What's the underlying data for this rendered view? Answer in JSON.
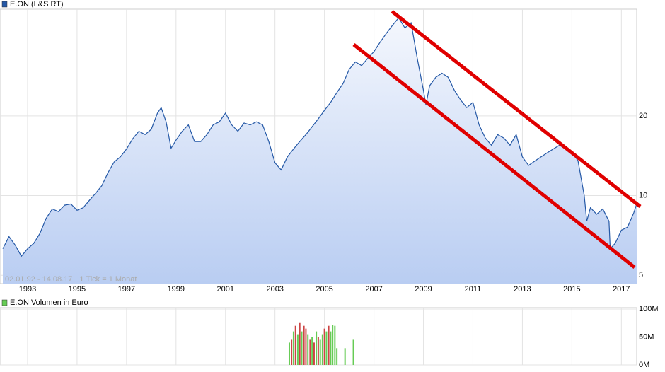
{
  "chart_data": [
    {
      "type": "line",
      "title": "E.ON (L&S RT)",
      "annotations": [
        "02.01.92 - 14.08.17",
        "1 Tick = 1 Monat"
      ],
      "log_y": true,
      "grid": true,
      "area": true,
      "xlim": [
        1992.0,
        2017.62
      ],
      "xticks": [
        1993,
        1995,
        1997,
        1999,
        2001,
        2003,
        2005,
        2007,
        2009,
        2011,
        2013,
        2015,
        2017
      ],
      "ylim": [
        4.65,
        50
      ],
      "yticks": [
        5,
        10,
        20
      ],
      "x": [
        1992.0,
        1992.25,
        1992.5,
        1992.75,
        1993.0,
        1993.25,
        1993.5,
        1993.75,
        1994.0,
        1994.25,
        1994.5,
        1994.75,
        1995.0,
        1995.25,
        1995.5,
        1995.75,
        1996.0,
        1996.25,
        1996.5,
        1996.75,
        1997.0,
        1997.25,
        1997.5,
        1997.75,
        1998.0,
        1998.25,
        1998.4,
        1998.6,
        1998.8,
        1999.0,
        1999.25,
        1999.5,
        1999.75,
        2000.0,
        2000.25,
        2000.5,
        2000.75,
        2001.0,
        2001.25,
        2001.5,
        2001.75,
        2002.0,
        2002.25,
        2002.5,
        2002.75,
        2003.0,
        2003.25,
        2003.5,
        2003.75,
        2004.0,
        2004.25,
        2004.5,
        2004.75,
        2005.0,
        2005.25,
        2005.5,
        2005.75,
        2006.0,
        2006.25,
        2006.5,
        2006.75,
        2007.0,
        2007.25,
        2007.5,
        2007.75,
        2008.0,
        2008.25,
        2008.5,
        2008.75,
        2009.0,
        2009.1,
        2009.25,
        2009.5,
        2009.75,
        2010.0,
        2010.25,
        2010.5,
        2010.75,
        2011.0,
        2011.25,
        2011.5,
        2011.75,
        2012.0,
        2012.25,
        2012.5,
        2012.75,
        2013.0,
        2013.25,
        2013.5,
        2013.75,
        2014.0,
        2014.25,
        2014.5,
        2014.75,
        2015.0,
        2015.25,
        2015.5,
        2015.6,
        2015.75,
        2016.0,
        2016.25,
        2016.5,
        2016.55,
        2016.75,
        2017.0,
        2017.25,
        2017.5,
        2017.62
      ],
      "series": [
        {
          "name": "E.ON (L&S RT)",
          "color": "#2458a6",
          "values": [
            6.3,
            7.0,
            6.5,
            5.9,
            6.3,
            6.6,
            7.2,
            8.2,
            8.9,
            8.7,
            9.2,
            9.3,
            8.8,
            9.0,
            9.6,
            10.2,
            10.9,
            12.2,
            13.4,
            14.0,
            15.0,
            16.4,
            17.5,
            17.0,
            17.8,
            20.5,
            21.5,
            19.0,
            15.1,
            16.2,
            17.5,
            18.5,
            16.0,
            16.0,
            17.0,
            18.5,
            19.0,
            20.5,
            18.5,
            17.5,
            18.8,
            18.5,
            19.0,
            18.5,
            16.0,
            13.3,
            12.5,
            14.0,
            15.0,
            16.0,
            17.0,
            18.2,
            19.5,
            21.0,
            22.5,
            24.5,
            26.5,
            30.0,
            32.0,
            31.0,
            33.0,
            35.0,
            38.0,
            41.0,
            44.0,
            47.0,
            43.0,
            45.0,
            33.0,
            25.0,
            22.0,
            26.0,
            28.0,
            29.0,
            28.0,
            25.0,
            23.0,
            21.5,
            22.5,
            18.5,
            16.5,
            15.5,
            17.0,
            16.5,
            15.5,
            17.0,
            14.0,
            13.0,
            13.5,
            14.0,
            14.5,
            15.0,
            15.5,
            15.0,
            14.7,
            13.5,
            10.0,
            8.0,
            9.0,
            8.5,
            8.9,
            8.0,
            6.3,
            6.6,
            7.4,
            7.6,
            8.6,
            9.3
          ]
        }
      ]
    },
    {
      "type": "bar",
      "title": "E.ON Volumen in Euro",
      "grid": true,
      "xlim": [
        1992.0,
        2017.62
      ],
      "ylim": [
        0,
        100
      ],
      "yticks": [
        {
          "value": 0,
          "label": "0M"
        },
        {
          "value": 50,
          "label": "50M"
        },
        {
          "value": 100,
          "label": "100M"
        }
      ],
      "x": [
        2003.58,
        2003.67,
        2003.75,
        2003.83,
        2003.92,
        2004.0,
        2004.08,
        2004.17,
        2004.25,
        2004.33,
        2004.42,
        2004.5,
        2004.58,
        2004.67,
        2004.75,
        2004.83,
        2004.92,
        2005.0,
        2005.08,
        2005.17,
        2005.25,
        2005.33,
        2005.42,
        2005.5,
        2005.83,
        2006.17
      ],
      "series": [
        {
          "name": "E.ON Volumen in Euro",
          "color": "#66cc55",
          "values": [
            40,
            45,
            60,
            70,
            55,
            75,
            60,
            70,
            65,
            55,
            45,
            50,
            40,
            60,
            50,
            45,
            55,
            65,
            60,
            70,
            60,
            72,
            70,
            30,
            30,
            45
          ],
          "colors": [
            "#66cc55",
            "#cc4444",
            "#66cc55",
            "#cc4444",
            "#66cc55",
            "#cc4444",
            "#66cc55",
            "#cc4444",
            "#cc4444",
            "#66cc55",
            "#cc4444",
            "#66cc55",
            "#cc4444",
            "#66cc55",
            "#cc4444",
            "#66cc55",
            "#66cc55",
            "#cc4444",
            "#66cc55",
            "#cc4444",
            "#66cc55",
            "#66cc55",
            "#66cc55",
            "#66cc55",
            "#66cc55",
            "#66cc55"
          ]
        }
      ]
    }
  ]
}
